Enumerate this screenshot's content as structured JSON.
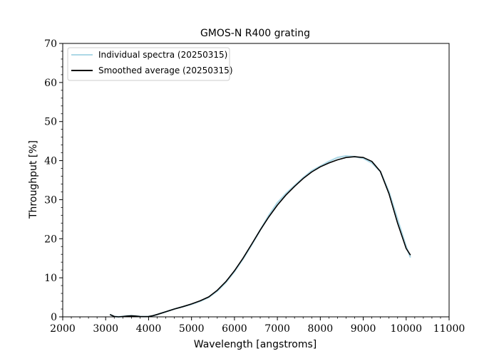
{
  "chart_data": {
    "type": "line",
    "title": "GMOS-N R400 grating",
    "xlabel": "Wavelength [angstroms]",
    "ylabel": "Throughput [%]",
    "xlim": [
      2000,
      11000
    ],
    "ylim": [
      0,
      70
    ],
    "xticks": [
      2000,
      3000,
      4000,
      5000,
      6000,
      7000,
      8000,
      9000,
      10000,
      11000
    ],
    "yticks": [
      0,
      10,
      20,
      30,
      40,
      50,
      60,
      70
    ],
    "grid": false,
    "legend_position": "top-left",
    "series": [
      {
        "name": "Individual spectra (20250315)",
        "color": "#add8e6",
        "x": [
          3100,
          3200,
          3300,
          3400,
          3500,
          3600,
          3700,
          3800,
          3900,
          4000,
          4100,
          4200,
          4400,
          4600,
          4800,
          5000,
          5200,
          5400,
          5600,
          5800,
          6000,
          6200,
          6400,
          6600,
          6800,
          7000,
          7200,
          7400,
          7600,
          7800,
          8000,
          8200,
          8400,
          8600,
          8800,
          9000,
          9200,
          9400,
          9600,
          9800,
          10000,
          10100
        ],
        "y": [
          0.6,
          0.1,
          0.0,
          0.1,
          0.25,
          0.3,
          0.2,
          0.1,
          0.05,
          0.1,
          0.3,
          0.6,
          1.3,
          2.0,
          2.6,
          3.2,
          4.0,
          5.0,
          6.6,
          8.8,
          11.6,
          14.8,
          18.4,
          22.2,
          26.0,
          29.2,
          31.6,
          33.6,
          35.6,
          37.4,
          38.6,
          39.8,
          40.8,
          41.2,
          41.0,
          40.6,
          39.4,
          37.2,
          32.0,
          25.0,
          18.0,
          15.2
        ]
      },
      {
        "name": "Smoothed average (20250315)",
        "color": "#000000",
        "x": [
          3100,
          3200,
          3300,
          3400,
          3500,
          3600,
          3700,
          3800,
          3900,
          4000,
          4100,
          4200,
          4400,
          4600,
          4800,
          5000,
          5200,
          5400,
          5600,
          5800,
          6000,
          6200,
          6400,
          6600,
          6800,
          7000,
          7200,
          7400,
          7600,
          7800,
          8000,
          8200,
          8400,
          8600,
          8800,
          9000,
          9200,
          9400,
          9600,
          9800,
          10000,
          10100
        ],
        "y": [
          0.6,
          0.1,
          0.0,
          0.1,
          0.2,
          0.25,
          0.2,
          0.1,
          0.05,
          0.1,
          0.3,
          0.6,
          1.3,
          2.0,
          2.6,
          3.3,
          4.1,
          5.1,
          6.8,
          9.0,
          11.8,
          15.0,
          18.6,
          22.2,
          25.6,
          28.6,
          31.2,
          33.4,
          35.4,
          37.1,
          38.4,
          39.4,
          40.2,
          40.8,
          41.0,
          40.8,
          39.8,
          37.2,
          31.5,
          24.0,
          17.5,
          15.8
        ]
      }
    ]
  }
}
